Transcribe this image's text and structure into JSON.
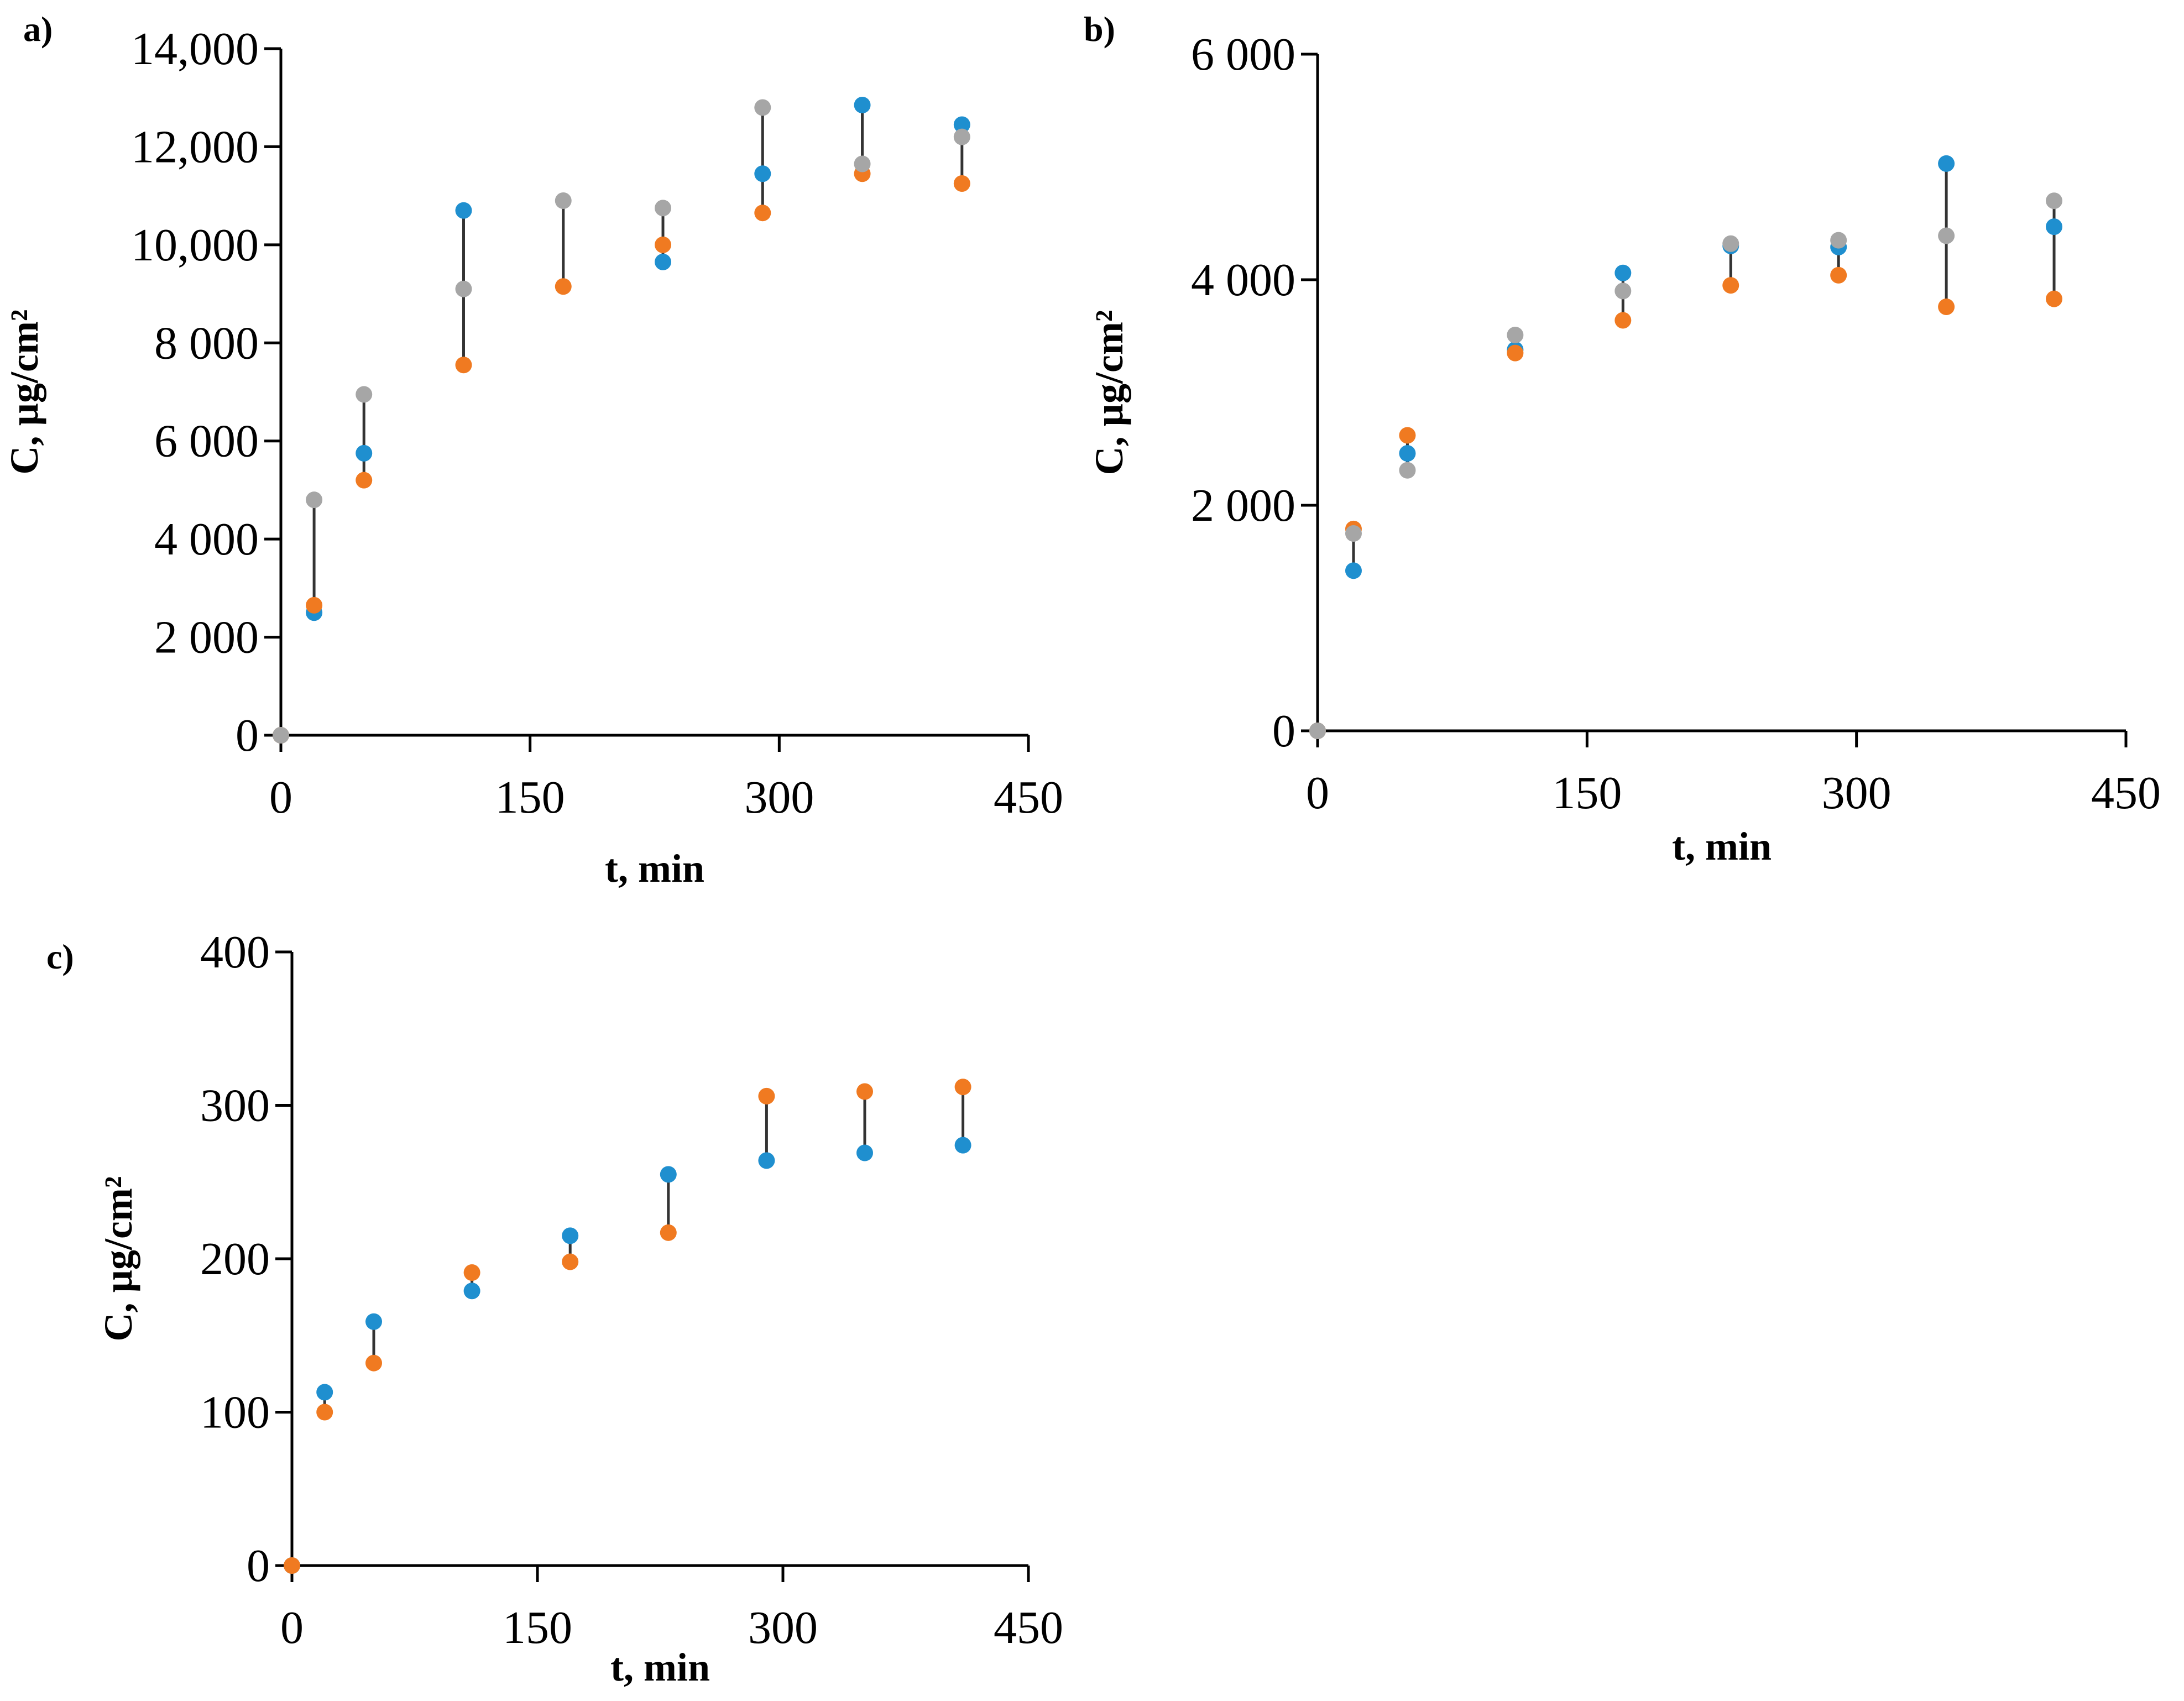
{
  "colors": {
    "series_blue": "#1f8fcf",
    "series_orange": "#f07a21",
    "series_gray": "#a6a6a6",
    "range_line": "#333333",
    "axis": "#000000"
  },
  "chart_data": [
    {
      "type": "scatter",
      "panel_label": "a)",
      "xlabel": "t, min",
      "ylabel": "C, µg/cm²",
      "xlim": [
        0,
        450
      ],
      "ylim": [
        0,
        14000
      ],
      "x_ticks": [
        "0",
        "150",
        "300",
        "450"
      ],
      "y_ticks": [
        "0",
        "2 000",
        "4 000",
        "6 000",
        "8 000",
        "10,000",
        "12,000",
        "14,000"
      ],
      "grid": false,
      "legend": "none",
      "x": [
        0,
        20,
        50,
        110,
        170,
        230,
        290,
        350,
        410
      ],
      "series": [
        {
          "name": "blue",
          "values": [
            0,
            2500,
            5750,
            10700,
            null,
            9650,
            11450,
            12850,
            12450
          ]
        },
        {
          "name": "orange",
          "values": [
            0,
            2650,
            5200,
            7550,
            9150,
            10000,
            10650,
            11450,
            11250
          ]
        },
        {
          "name": "gray",
          "values": [
            0,
            4800,
            6950,
            9100,
            10900,
            10750,
            12800,
            11650,
            12200
          ]
        }
      ]
    },
    {
      "type": "scatter",
      "panel_label": "b)",
      "xlabel": "t, min",
      "ylabel": "C, µg/cm²",
      "xlim": [
        0,
        450
      ],
      "ylim": [
        0,
        6000
      ],
      "x_ticks": [
        "0",
        "150",
        "300",
        "450"
      ],
      "y_ticks": [
        "0",
        "2 000",
        "4 000",
        "6 000"
      ],
      "grid": false,
      "legend": "none",
      "x": [
        0,
        20,
        50,
        110,
        170,
        230,
        290,
        350,
        410
      ],
      "series": [
        {
          "name": "blue",
          "values": [
            0,
            1420,
            2460,
            3380,
            4060,
            4300,
            4290,
            5030,
            4470
          ]
        },
        {
          "name": "orange",
          "values": [
            0,
            1790,
            2620,
            3350,
            3640,
            3950,
            4040,
            3760,
            3830
          ]
        },
        {
          "name": "gray",
          "values": [
            0,
            1750,
            2310,
            3510,
            3900,
            4320,
            4350,
            4390,
            4700
          ]
        }
      ]
    },
    {
      "type": "scatter",
      "panel_label": "c)",
      "xlabel": "t, min",
      "ylabel": "C, µg/cm²",
      "xlim": [
        0,
        450
      ],
      "ylim": [
        0,
        400
      ],
      "x_ticks": [
        "0",
        "150",
        "300",
        "450"
      ],
      "y_ticks": [
        "0",
        "100",
        "200",
        "300",
        "400"
      ],
      "grid": false,
      "legend": "none",
      "x": [
        0,
        20,
        50,
        110,
        170,
        230,
        290,
        350,
        410
      ],
      "series": [
        {
          "name": "blue",
          "values": [
            0,
            113,
            159,
            179,
            215,
            255,
            264,
            269,
            274
          ]
        },
        {
          "name": "orange",
          "values": [
            0,
            100,
            132,
            191,
            198,
            217,
            306,
            309,
            312
          ]
        }
      ]
    }
  ]
}
